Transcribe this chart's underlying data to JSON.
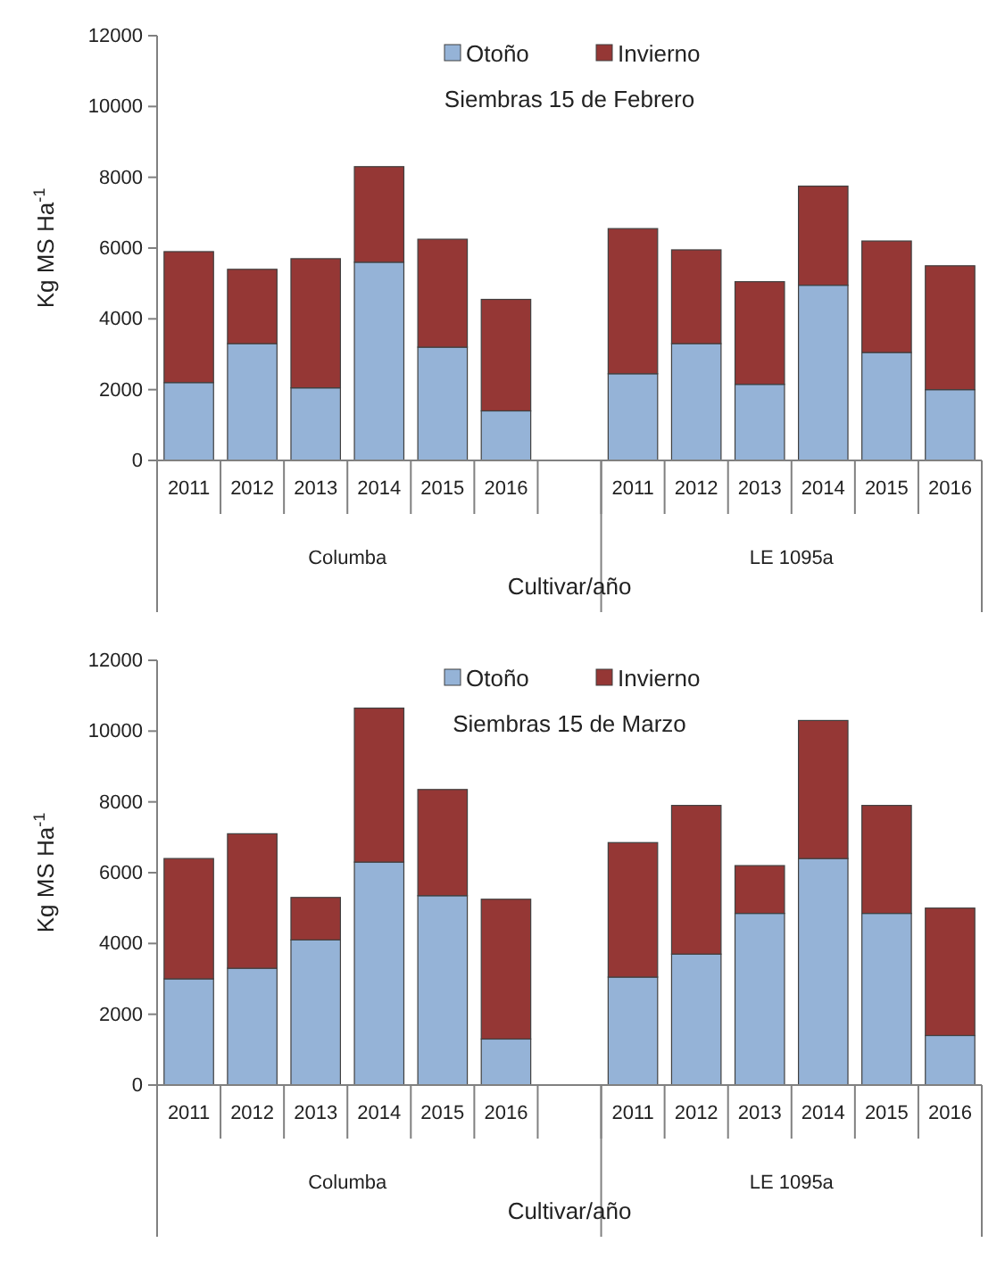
{
  "chart_data": [
    {
      "type": "bar",
      "stacked": true,
      "title": "Siembras 15 de Febrero",
      "xlabel": "Cultivar/año",
      "ylabel": "Kg MS Ha$^{-1}$",
      "categories": [
        "2011",
        "2012",
        "2013",
        "2014",
        "2015",
        "2016",
        null,
        "2011",
        "2012",
        "2013",
        "2014",
        "2015",
        "2016"
      ],
      "ylim": [
        0,
        12000
      ],
      "yticks": [
        0,
        2000,
        4000,
        6000,
        8000,
        10000,
        12000
      ],
      "legend": "top",
      "annotations": [
        "Columba",
        "LE 1095a"
      ],
      "series": [
        {
          "name": "Otoño",
          "color": "#95b3d7",
          "values": [
            2200,
            3300,
            2050,
            5600,
            3200,
            1400,
            null,
            2450,
            3300,
            2150,
            4950,
            3050,
            2000
          ]
        },
        {
          "name": "Invierno",
          "color": "#953735",
          "values": [
            3700,
            2100,
            3650,
            2700,
            3050,
            3150,
            null,
            4100,
            2650,
            2900,
            2800,
            3150,
            3500
          ]
        }
      ]
    },
    {
      "type": "bar",
      "stacked": true,
      "title": "Siembras 15 de Marzo",
      "xlabel": "Cultivar/año",
      "ylabel": "Kg MS Ha$^{-1}$",
      "categories": [
        "2011",
        "2012",
        "2013",
        "2014",
        "2015",
        "2016",
        null,
        "2011",
        "2012",
        "2013",
        "2014",
        "2015",
        "2016"
      ],
      "ylim": [
        0,
        12000
      ],
      "yticks": [
        0,
        2000,
        4000,
        6000,
        8000,
        10000,
        12000
      ],
      "legend": "top",
      "annotations": [
        "Columba",
        "LE 1095a"
      ],
      "series": [
        {
          "name": "Otoño",
          "color": "#95b3d7",
          "values": [
            3000,
            3300,
            4100,
            6300,
            5350,
            1300,
            null,
            3050,
            3700,
            4850,
            6400,
            4850,
            1400
          ]
        },
        {
          "name": "Invierno",
          "color": "#953735",
          "values": [
            3400,
            3800,
            1200,
            4350,
            3000,
            3950,
            null,
            3800,
            4200,
            1350,
            3900,
            3050,
            3600
          ]
        }
      ]
    }
  ]
}
